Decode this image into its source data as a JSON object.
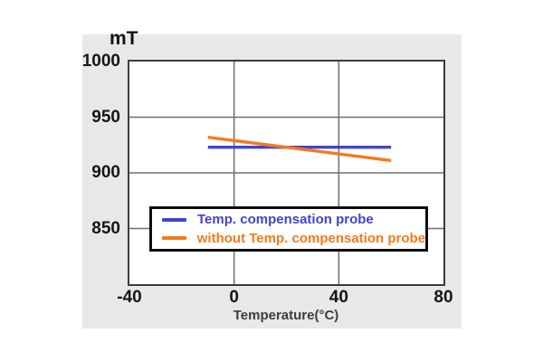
{
  "panel": {
    "background": "#e8e8e9",
    "plot_background": "#ffffff",
    "border_color": "#3c3c3c",
    "grid_color": "#6e6e6e",
    "legend_border_color": "#0d0d0d"
  },
  "chart_data": {
    "type": "line",
    "title": "",
    "y_unit_label": "mT",
    "xlabel": "Temperature(°C)",
    "ylabel": "",
    "xlim": [
      -40,
      80
    ],
    "ylim": [
      800,
      1000
    ],
    "xticks": [
      -40,
      0,
      40,
      80
    ],
    "yticks": [
      1000,
      950,
      900,
      850
    ],
    "grid": true,
    "legend_position": "inside-bottom-left",
    "series": [
      {
        "name": "Temp. compensation probe",
        "color": "#4343d0",
        "x": [
          -10,
          60
        ],
        "y": [
          923,
          923
        ]
      },
      {
        "name": "without Temp. compensation probe",
        "color": "#f57a1d",
        "x": [
          -10,
          60
        ],
        "y": [
          932,
          911
        ]
      }
    ]
  }
}
